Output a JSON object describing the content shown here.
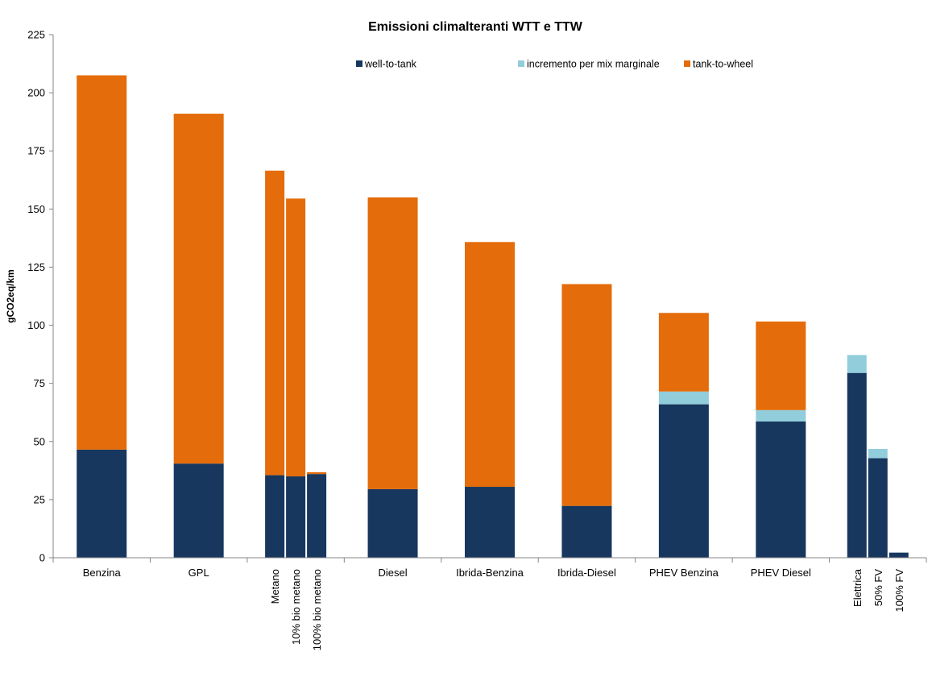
{
  "chart_data": {
    "type": "bar",
    "stacked": true,
    "title": "Emissioni climalteranti WTT e TTW",
    "ylabel": "gCO2eq/km",
    "xlabel": "",
    "ylim": [
      0,
      225
    ],
    "yticks": [
      0,
      25,
      50,
      75,
      100,
      125,
      150,
      175,
      200,
      225
    ],
    "grid": false,
    "legend_position": "top",
    "colors": {
      "wtt": "#17375e",
      "mix": "#92cddc",
      "ttw": "#e46c0a"
    },
    "series": [
      {
        "key": "wtt",
        "name": "well-to-tank"
      },
      {
        "key": "mix",
        "name": "incremento per mix marginale"
      },
      {
        "key": "ttw",
        "name": "tank-to-wheel"
      }
    ],
    "groups": [
      {
        "label": "Benzina",
        "bars": [
          {
            "sublabel": "",
            "wtt": 46.5,
            "mix": 0,
            "ttw": 161
          }
        ]
      },
      {
        "label": "GPL",
        "bars": [
          {
            "sublabel": "",
            "wtt": 40.5,
            "mix": 0,
            "ttw": 150.5
          }
        ]
      },
      {
        "label": "",
        "bars": [
          {
            "sublabel": "Metano",
            "wtt": 35.5,
            "mix": 0,
            "ttw": 131
          },
          {
            "sublabel": "10%  bio metano",
            "wtt": 35,
            "mix": 0,
            "ttw": 119.5
          },
          {
            "sublabel": "100% bio metano",
            "wtt": 36,
            "mix": 0,
            "ttw": 0.8
          }
        ]
      },
      {
        "label": "Diesel",
        "bars": [
          {
            "sublabel": "",
            "wtt": 29.5,
            "mix": 0,
            "ttw": 125.5
          }
        ]
      },
      {
        "label": "Ibrida-Benzina",
        "bars": [
          {
            "sublabel": "",
            "wtt": 30.5,
            "mix": 0,
            "ttw": 105.3
          }
        ]
      },
      {
        "label": "Ibrida-Diesel",
        "bars": [
          {
            "sublabel": "",
            "wtt": 22.3,
            "mix": 0,
            "ttw": 95.4
          }
        ]
      },
      {
        "label": "PHEV Benzina",
        "bars": [
          {
            "sublabel": "",
            "wtt": 66,
            "mix": 5.5,
            "ttw": 33.8
          }
        ]
      },
      {
        "label": "PHEV Diesel",
        "bars": [
          {
            "sublabel": "",
            "wtt": 58.6,
            "mix": 4.9,
            "ttw": 38.1
          }
        ]
      },
      {
        "label": "",
        "bars": [
          {
            "sublabel": "Elettrica",
            "wtt": 79.5,
            "mix": 7.7,
            "ttw": 0
          },
          {
            "sublabel": "50%  FV",
            "wtt": 42.8,
            "mix": 4.0,
            "ttw": 0
          },
          {
            "sublabel": "100% FV",
            "wtt": 2.2,
            "mix": 0,
            "ttw": 0
          }
        ]
      }
    ]
  }
}
